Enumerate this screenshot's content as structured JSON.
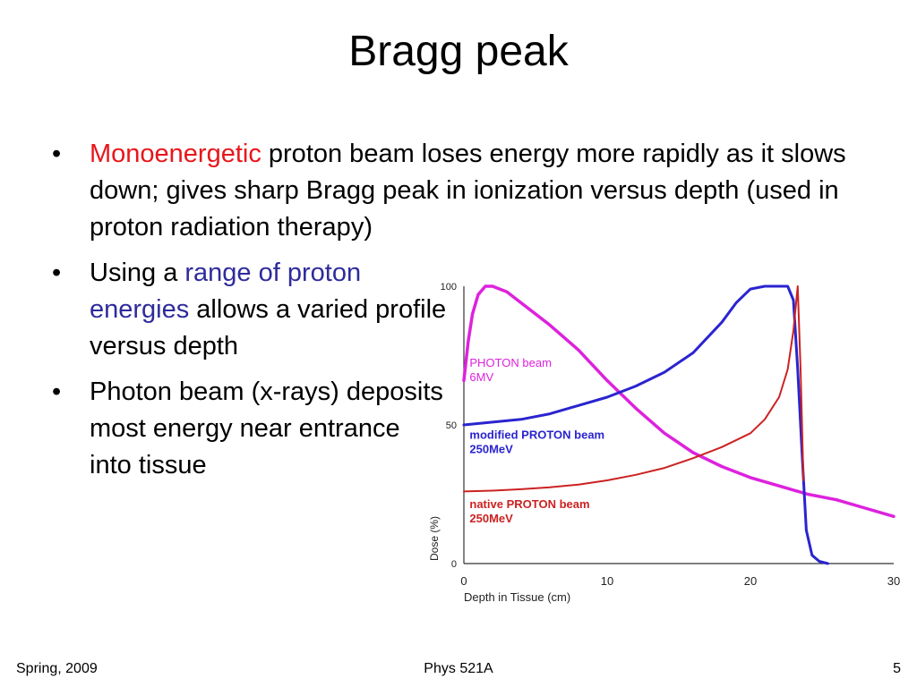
{
  "slide": {
    "title": "Bragg peak",
    "bullets": [
      {
        "highlight": "Monoenergetic",
        "highlight_color": "#e8161a",
        "rest": " proton beam loses energy more rapidly as it slows down; gives sharp Bragg peak in ionization versus depth (used in proton radiation therapy)"
      },
      {
        "prefix": "Using a ",
        "highlight": "range of proton energies",
        "highlight_color": "#2e2b9c",
        "rest": " allows a varied profile versus depth"
      },
      {
        "text": "Photon beam (x-rays) deposits most energy near entrance into tissue"
      }
    ],
    "footer": {
      "left": "Spring, 2009",
      "center": "Phys 521A",
      "right": "5"
    }
  },
  "chart_data": {
    "type": "line",
    "xlabel": "Depth in Tissue (cm)",
    "ylabel": "Dose (%)",
    "xlim": [
      0,
      30
    ],
    "ylim": [
      0,
      100
    ],
    "x_ticks": [
      "0",
      "10",
      "20",
      "30"
    ],
    "y_ticks": [
      "0",
      "50",
      "100"
    ],
    "grid": false,
    "series": [
      {
        "name": "PHOTON beam 6MV",
        "label_lines": [
          "PHOTON beam",
          "6MV"
        ],
        "color": "#dd22dd",
        "x": [
          0,
          0.3,
          0.6,
          1.0,
          1.5,
          2.0,
          3.0,
          4.0,
          6.0,
          8.0,
          10.0,
          12.0,
          14.0,
          16.0,
          18.0,
          20.0,
          22.0,
          24.0,
          26.0,
          28.0,
          30.0
        ],
        "y": [
          66,
          80,
          90,
          97,
          100,
          100,
          98,
          94,
          86,
          77,
          66,
          56,
          47,
          40,
          35,
          31,
          28,
          25,
          23,
          20,
          17
        ]
      },
      {
        "name": "modified PROTON beam 250MeV",
        "label_lines": [
          "modified PROTON beam",
          "250MeV"
        ],
        "color": "#2a24d0",
        "x": [
          0,
          2,
          4,
          6,
          8,
          10,
          12,
          14,
          16,
          18,
          19,
          20,
          21,
          22,
          22.6,
          23.0,
          23.3,
          23.6,
          23.9,
          24.3,
          24.8,
          25.4
        ],
        "y": [
          50,
          51,
          52,
          54,
          57,
          60,
          64,
          69,
          76,
          87,
          94,
          99,
          100,
          100,
          100,
          95,
          70,
          40,
          12,
          3,
          0.8,
          0
        ]
      },
      {
        "name": "native PROTON beam 250MeV",
        "label_lines": [
          "native PROTON beam",
          "250MeV"
        ],
        "color": "#cc2222",
        "x": [
          0,
          2,
          4,
          6,
          8,
          10,
          12,
          14,
          16,
          18,
          20,
          21,
          22,
          22.6,
          23.0,
          23.3,
          23.5,
          23.7
        ],
        "y": [
          26,
          26.3,
          26.8,
          27.5,
          28.5,
          30,
          32,
          34.5,
          38,
          42,
          47,
          52,
          60,
          70,
          84,
          100,
          70,
          30
        ]
      }
    ]
  }
}
